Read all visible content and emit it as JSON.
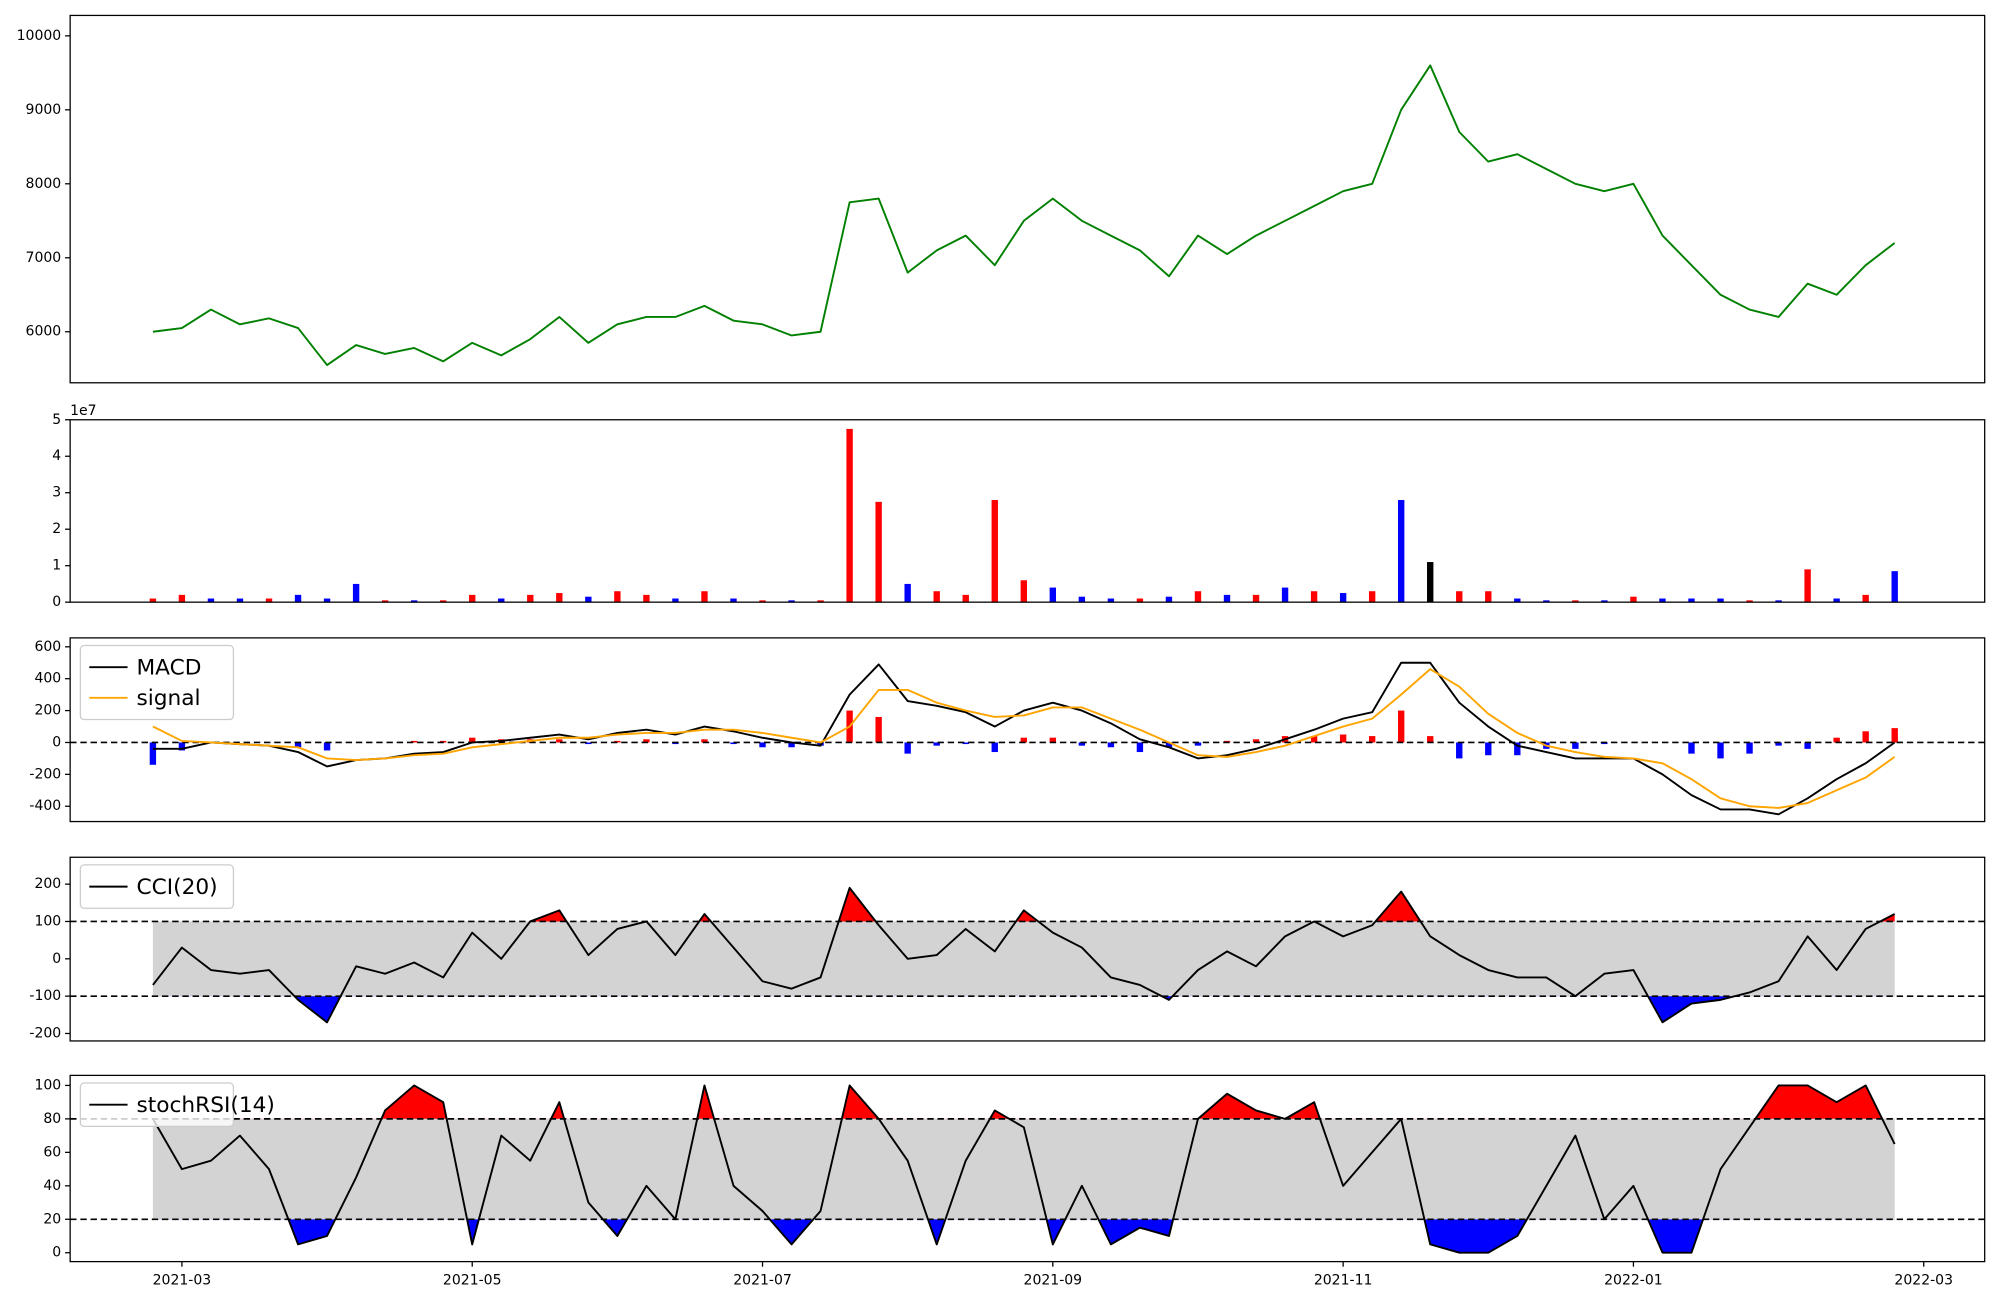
{
  "chart_data": [
    {
      "type": "line",
      "color": "green",
      "x": [
        2.8,
        3.0,
        3.2,
        3.4,
        3.6,
        3.8,
        4.0,
        4.2,
        4.4,
        4.6,
        4.8,
        5.0,
        5.2,
        5.4,
        5.6,
        5.8,
        6.0,
        6.2,
        6.4,
        6.6,
        6.8,
        7.0,
        7.2,
        7.4,
        7.6,
        7.8,
        8.0,
        8.2,
        8.4,
        8.6,
        8.8,
        9.0,
        9.2,
        9.4,
        9.6,
        9.8,
        10.0,
        10.2,
        10.4,
        10.6,
        10.8,
        11.0,
        11.2,
        11.4,
        11.6,
        11.8,
        12.0,
        12.2,
        12.4,
        12.6,
        12.8,
        13.0,
        13.2,
        13.4,
        13.6,
        13.8,
        14.0,
        14.2,
        14.4,
        14.6,
        14.8
      ],
      "values": [
        6000,
        6050,
        6300,
        6100,
        6180,
        6050,
        5550,
        5820,
        5700,
        5780,
        5600,
        5850,
        5680,
        5900,
        6200,
        5850,
        6100,
        6200,
        6200,
        6350,
        6150,
        6100,
        5950,
        6000,
        7750,
        7800,
        6800,
        7100,
        7300,
        6900,
        7500,
        7800,
        7500,
        7300,
        7100,
        6750,
        7300,
        7050,
        7300,
        7500,
        7700,
        7900,
        8000,
        9000,
        9600,
        8700,
        8300,
        8400,
        8200,
        8000,
        7900,
        8000,
        7300,
        6900,
        6500,
        6300,
        6200,
        6650,
        6500,
        6900,
        7200
      ],
      "xlim": [
        2.23,
        15.42
      ],
      "ylim": [
        5310,
        10276
      ],
      "yticks": [
        6000,
        7000,
        8000,
        9000,
        10000
      ]
    },
    {
      "type": "bar",
      "y_offset_label": "1e7",
      "x": [
        2.8,
        3.0,
        3.2,
        3.4,
        3.6,
        3.8,
        4.0,
        4.2,
        4.4,
        4.6,
        4.8,
        5.0,
        5.2,
        5.4,
        5.6,
        5.8,
        6.0,
        6.2,
        6.4,
        6.6,
        6.8,
        7.0,
        7.2,
        7.4,
        7.6,
        7.8,
        8.0,
        8.2,
        8.4,
        8.6,
        8.8,
        9.0,
        9.2,
        9.4,
        9.6,
        9.8,
        10.0,
        10.2,
        10.4,
        10.6,
        10.8,
        11.0,
        11.2,
        11.4,
        11.6,
        11.8,
        12.0,
        12.2,
        12.4,
        12.6,
        12.8,
        13.0,
        13.2,
        13.4,
        13.6,
        13.8,
        14.0,
        14.2,
        14.4,
        14.6,
        14.8
      ],
      "values": [
        0.1,
        0.2,
        0.1,
        0.1,
        0.1,
        0.2,
        0.1,
        0.5,
        0.05,
        0.05,
        0.05,
        0.2,
        0.1,
        0.2,
        0.25,
        0.15,
        0.3,
        0.2,
        0.1,
        0.3,
        0.1,
        0.05,
        0.05,
        0.05,
        4.75,
        2.75,
        0.5,
        0.3,
        0.2,
        2.8,
        0.6,
        0.4,
        0.15,
        0.1,
        0.1,
        0.15,
        0.3,
        0.2,
        0.2,
        0.4,
        0.3,
        0.25,
        0.3,
        2.8,
        1.1,
        0.3,
        0.3,
        0.1,
        0.05,
        0.05,
        0.05,
        0.15,
        0.1,
        0.1,
        0.1,
        0.05,
        0.05,
        0.9,
        0.1,
        0.2,
        0.85
      ],
      "colors": [
        "red",
        "red",
        "blue",
        "blue",
        "red",
        "blue",
        "blue",
        "blue",
        "red",
        "blue",
        "red",
        "red",
        "blue",
        "red",
        "red",
        "blue",
        "red",
        "red",
        "blue",
        "red",
        "blue",
        "red",
        "blue",
        "red",
        "red",
        "red",
        "blue",
        "red",
        "red",
        "red",
        "red",
        "blue",
        "blue",
        "blue",
        "red",
        "blue",
        "red",
        "blue",
        "red",
        "blue",
        "red",
        "blue",
        "red",
        "blue",
        "black",
        "red",
        "red",
        "blue",
        "blue",
        "red",
        "blue",
        "red",
        "blue",
        "blue",
        "blue",
        "red",
        "blue",
        "red",
        "blue",
        "red",
        "blue"
      ],
      "xlim": [
        2.23,
        15.42
      ],
      "ylim": [
        0,
        5
      ],
      "yticks": [
        0,
        1,
        2,
        3,
        4,
        5
      ]
    },
    {
      "type": "macd",
      "legend": "upper left",
      "levels": [
        0
      ],
      "up_color": "red",
      "down_color": "blue",
      "x": [
        2.8,
        3.0,
        3.2,
        3.4,
        3.6,
        3.8,
        4.0,
        4.2,
        4.4,
        4.6,
        4.8,
        5.0,
        5.2,
        5.4,
        5.6,
        5.8,
        6.0,
        6.2,
        6.4,
        6.6,
        6.8,
        7.0,
        7.2,
        7.4,
        7.6,
        7.8,
        8.0,
        8.2,
        8.4,
        8.6,
        8.8,
        9.0,
        9.2,
        9.4,
        9.6,
        9.8,
        10.0,
        10.2,
        10.4,
        10.6,
        10.8,
        11.0,
        11.2,
        11.4,
        11.6,
        11.8,
        12.0,
        12.2,
        12.4,
        12.6,
        12.8,
        13.0,
        13.2,
        13.4,
        13.6,
        13.8,
        14.0,
        14.2,
        14.4,
        14.6,
        14.8
      ],
      "series": [
        {
          "name": "MACD",
          "color": "black",
          "values": [
            -40,
            -40,
            0,
            -10,
            -20,
            -60,
            -150,
            -110,
            -100,
            -70,
            -60,
            0,
            10,
            30,
            50,
            20,
            60,
            80,
            50,
            100,
            70,
            30,
            0,
            -20,
            300,
            490,
            260,
            230,
            190,
            100,
            200,
            250,
            200,
            120,
            20,
            -30,
            -100,
            -80,
            -40,
            20,
            80,
            150,
            190,
            500,
            500,
            250,
            100,
            -20,
            -60,
            -100,
            -100,
            -100,
            -200,
            -330,
            -420,
            -420,
            -450,
            -350,
            -230,
            -130,
            0
          ]
        },
        {
          "name": "signal",
          "color": "orange",
          "values": [
            100,
            10,
            0,
            -10,
            -20,
            -30,
            -100,
            -110,
            -100,
            -80,
            -70,
            -30,
            -10,
            10,
            30,
            30,
            50,
            60,
            60,
            80,
            80,
            60,
            30,
            0,
            100,
            330,
            330,
            250,
            200,
            160,
            170,
            220,
            220,
            150,
            80,
            0,
            -80,
            -90,
            -60,
            -20,
            40,
            100,
            150,
            300,
            460,
            350,
            180,
            60,
            -20,
            -60,
            -90,
            -100,
            -130,
            -230,
            -350,
            -400,
            -410,
            -380,
            -300,
            -220,
            -90
          ]
        }
      ],
      "histogram": [
        -140,
        -50,
        0,
        0,
        0,
        -30,
        -50,
        0,
        0,
        10,
        10,
        30,
        20,
        20,
        20,
        -10,
        10,
        20,
        -10,
        20,
        -10,
        -30,
        -30,
        -20,
        200,
        160,
        -70,
        -20,
        -10,
        -60,
        30,
        30,
        -20,
        -30,
        -60,
        -30,
        -20,
        10,
        20,
        40,
        40,
        50,
        40,
        200,
        40,
        -100,
        -80,
        -80,
        -40,
        -40,
        -10,
        0,
        0,
        -70,
        -100,
        -70,
        -20,
        -40,
        30,
        70,
        90
      ],
      "xlim": [
        2.23,
        15.42
      ],
      "ylim": [
        -496,
        656
      ],
      "yticks": [
        -400,
        -200,
        0,
        200,
        400,
        600
      ]
    },
    {
      "type": "oscillator",
      "legend": "upper left",
      "levels": [
        -100,
        100
      ],
      "band_color": "lightgray",
      "upper_color": "red",
      "lower_color": "blue",
      "x": [
        2.8,
        3.0,
        3.2,
        3.4,
        3.6,
        3.8,
        4.0,
        4.2,
        4.4,
        4.6,
        4.8,
        5.0,
        5.2,
        5.4,
        5.6,
        5.8,
        6.0,
        6.2,
        6.4,
        6.6,
        6.8,
        7.0,
        7.2,
        7.4,
        7.6,
        7.8,
        8.0,
        8.2,
        8.4,
        8.6,
        8.8,
        9.0,
        9.2,
        9.4,
        9.6,
        9.8,
        10.0,
        10.2,
        10.4,
        10.6,
        10.8,
        11.0,
        11.2,
        11.4,
        11.6,
        11.8,
        12.0,
        12.2,
        12.4,
        12.6,
        12.8,
        13.0,
        13.2,
        13.4,
        13.6,
        13.8,
        14.0,
        14.2,
        14.4,
        14.6,
        14.8
      ],
      "series": [
        {
          "name": "CCI(20)",
          "color": "black",
          "values": [
            -70,
            30,
            -30,
            -40,
            -30,
            -110,
            -170,
            -20,
            -40,
            -10,
            -50,
            70,
            0,
            100,
            130,
            10,
            80,
            100,
            10,
            120,
            30,
            -60,
            -80,
            -50,
            190,
            90,
            0,
            10,
            80,
            20,
            130,
            70,
            30,
            -50,
            -70,
            -110,
            -30,
            20,
            -20,
            60,
            100,
            60,
            90,
            180,
            60,
            10,
            -30,
            -50,
            -50,
            -100,
            -40,
            -30,
            -170,
            -120,
            -110,
            -90,
            -60,
            60,
            -30,
            80,
            120
          ]
        }
      ],
      "xlim": [
        2.23,
        15.42
      ],
      "ylim": [
        -220,
        272
      ],
      "yticks": [
        -200,
        -100,
        0,
        100,
        200
      ]
    },
    {
      "type": "oscillator",
      "legend": "upper left",
      "levels": [
        20,
        80
      ],
      "band_color": "lightgray",
      "upper_color": "red",
      "lower_color": "blue",
      "x": [
        2.8,
        3.0,
        3.2,
        3.4,
        3.6,
        3.8,
        4.0,
        4.2,
        4.4,
        4.6,
        4.8,
        5.0,
        5.2,
        5.4,
        5.6,
        5.8,
        6.0,
        6.2,
        6.4,
        6.6,
        6.8,
        7.0,
        7.2,
        7.4,
        7.6,
        7.8,
        8.0,
        8.2,
        8.4,
        8.6,
        8.8,
        9.0,
        9.2,
        9.4,
        9.6,
        9.8,
        10.0,
        10.2,
        10.4,
        10.6,
        10.8,
        11.0,
        11.2,
        11.4,
        11.6,
        11.8,
        12.0,
        12.2,
        12.4,
        12.6,
        12.8,
        13.0,
        13.2,
        13.4,
        13.6,
        13.8,
        14.0,
        14.2,
        14.4,
        14.6,
        14.8
      ],
      "series": [
        {
          "name": "stochRSI(14)",
          "color": "black",
          "values": [
            80,
            50,
            55,
            70,
            50,
            5,
            10,
            45,
            85,
            100,
            90,
            5,
            70,
            55,
            90,
            30,
            10,
            40,
            20,
            100,
            40,
            25,
            5,
            25,
            100,
            80,
            55,
            5,
            55,
            85,
            75,
            5,
            40,
            5,
            15,
            10,
            80,
            95,
            85,
            80,
            90,
            40,
            60,
            80,
            5,
            0,
            0,
            10,
            40,
            70,
            20,
            40,
            0,
            0,
            50,
            75,
            100,
            100,
            90,
            100,
            65
          ]
        }
      ],
      "xlim": [
        2.23,
        15.42
      ],
      "ylim": [
        -5.3,
        106
      ],
      "yticks": [
        0,
        20,
        40,
        60,
        80,
        100
      ],
      "xticks": [
        {
          "value": 3,
          "label": "2021-03"
        },
        {
          "value": 5,
          "label": "2021-05"
        },
        {
          "value": 7,
          "label": "2021-07"
        },
        {
          "value": 9,
          "label": "2021-09"
        },
        {
          "value": 11,
          "label": "2021-11"
        },
        {
          "value": 13,
          "label": "2022-01"
        },
        {
          "value": 15,
          "label": "2022-03"
        }
      ]
    }
  ]
}
